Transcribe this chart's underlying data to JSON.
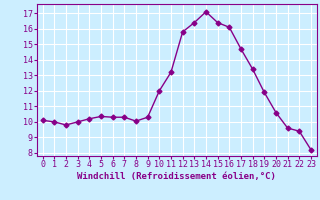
{
  "x": [
    0,
    1,
    2,
    3,
    4,
    5,
    6,
    7,
    8,
    9,
    10,
    11,
    12,
    13,
    14,
    15,
    16,
    17,
    18,
    19,
    20,
    21,
    22,
    23
  ],
  "y": [
    10.1,
    10.0,
    9.8,
    10.0,
    10.2,
    10.35,
    10.3,
    10.3,
    10.05,
    10.3,
    12.0,
    13.2,
    15.8,
    16.4,
    17.1,
    16.4,
    16.1,
    14.7,
    13.4,
    11.9,
    10.6,
    9.6,
    9.4,
    8.2
  ],
  "xlabel": "Windchill (Refroidissement éolien,°C)",
  "ylim": [
    7.8,
    17.6
  ],
  "xlim": [
    -0.5,
    23.5
  ],
  "yticks": [
    8,
    9,
    10,
    11,
    12,
    13,
    14,
    15,
    16,
    17
  ],
  "xticks": [
    0,
    1,
    2,
    3,
    4,
    5,
    6,
    7,
    8,
    9,
    10,
    11,
    12,
    13,
    14,
    15,
    16,
    17,
    18,
    19,
    20,
    21,
    22,
    23
  ],
  "line_color": "#880088",
  "marker": "D",
  "marker_size": 2.5,
  "bg_color": "#cceeff",
  "grid_color": "#ffffff",
  "axis_color": "#880088",
  "tick_color": "#880088",
  "label_color": "#880088",
  "tick_fontsize": 6,
  "xlabel_fontsize": 6.5
}
